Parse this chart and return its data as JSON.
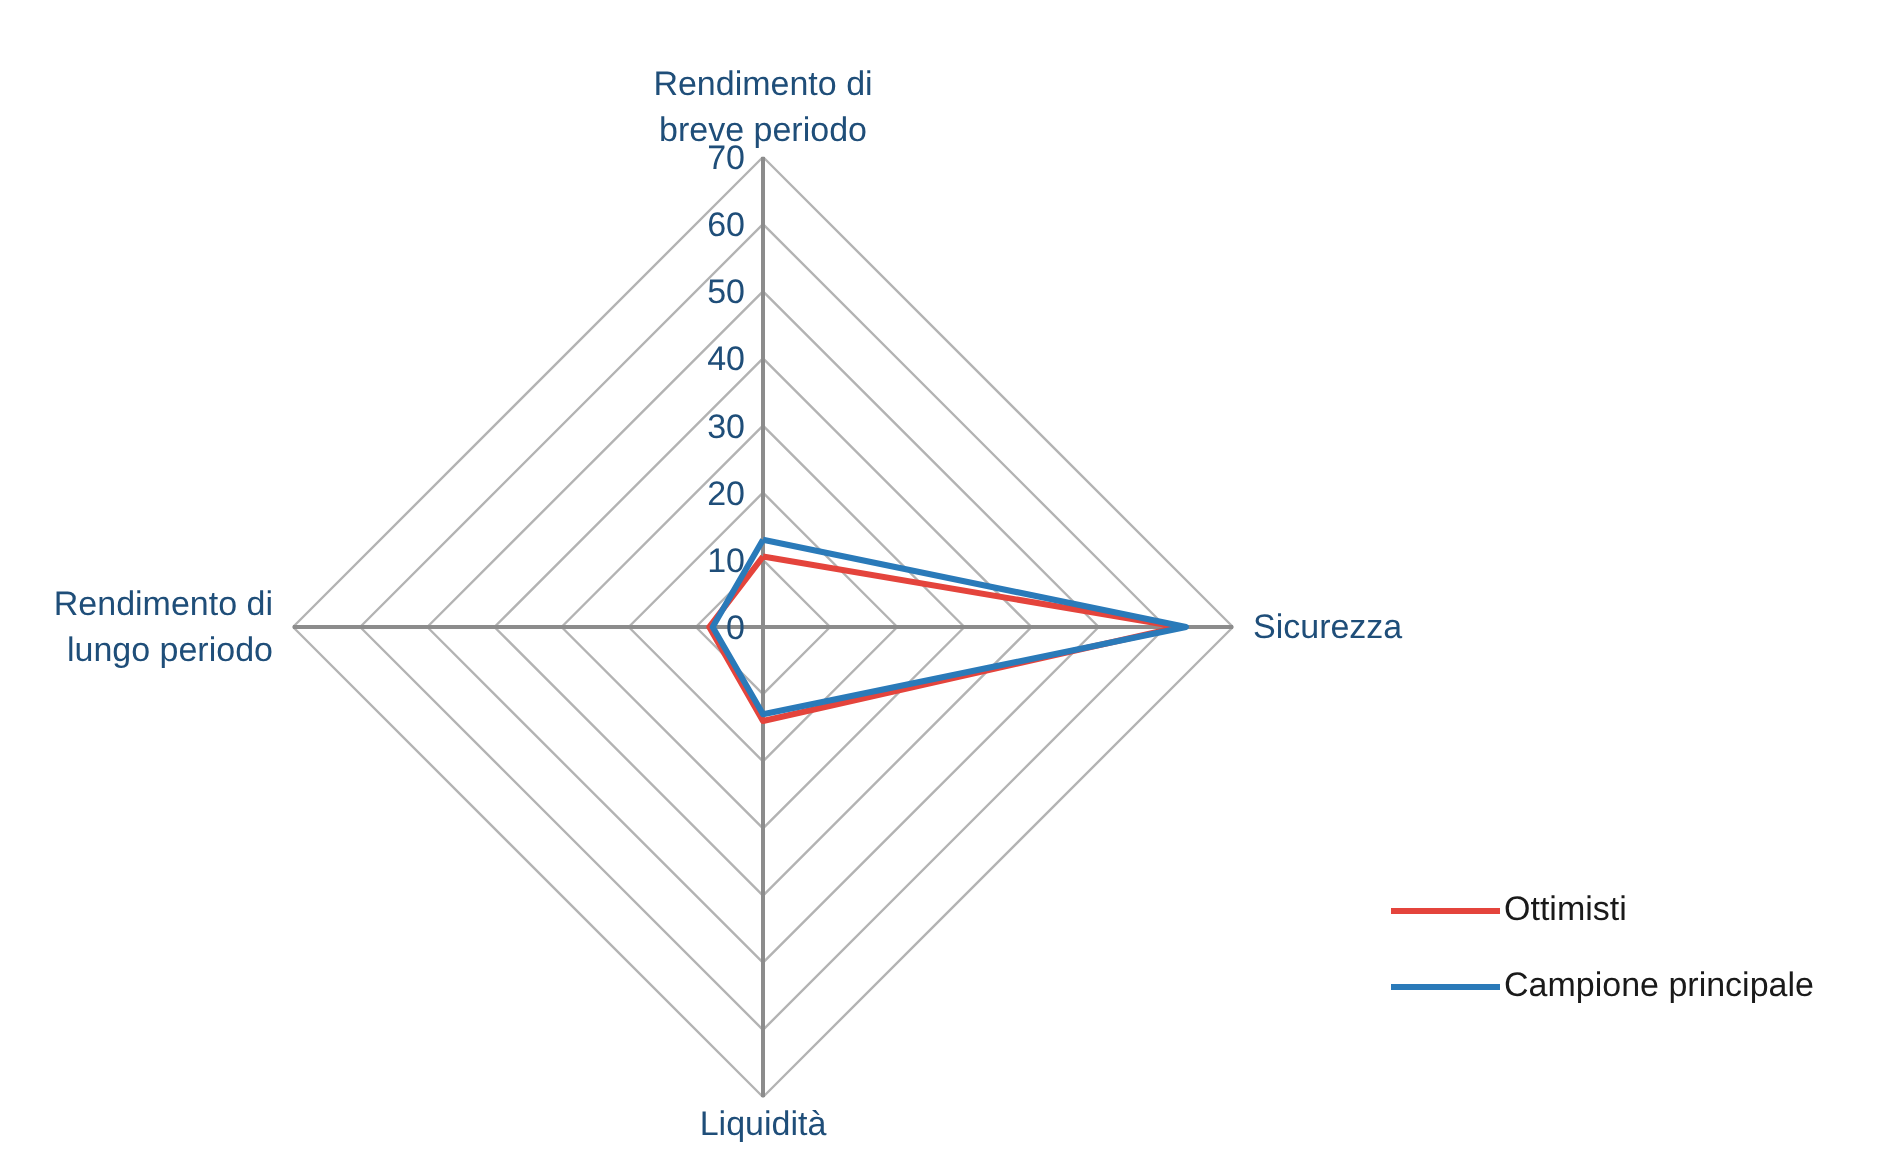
{
  "chart_data": {
    "type": "radar",
    "categories": [
      "Rendimento di\nbreve periodo",
      "Sicurezza",
      "Liquidità",
      "Rendimento di\nlungo periodo"
    ],
    "series": [
      {
        "name": "Ottimisti",
        "color": "#e4443c",
        "values": [
          10.5,
          62,
          14,
          8
        ]
      },
      {
        "name": "Campione principale",
        "color": "#2a7ab9",
        "values": [
          13,
          63,
          13,
          7.5
        ]
      }
    ],
    "ylim": [
      0,
      70
    ],
    "yticks": [
      0,
      10,
      20,
      30,
      40,
      50,
      60,
      70
    ],
    "grid": true,
    "legend": "bottom right"
  }
}
